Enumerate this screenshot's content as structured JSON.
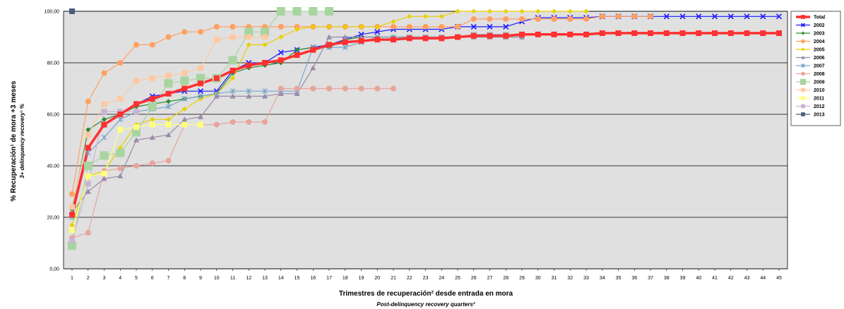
{
  "chart_data": {
    "type": "line",
    "xlabel": "Trimestres de recuperación² desde entrada en mora",
    "xlabel_en": "Post-delinquency recovery quarters²",
    "ylabel": "% Recuperación¹ de mora +3 meses",
    "ylabel_en": "3+ delinquency recovery¹ %",
    "ylim": [
      0,
      100
    ],
    "yticks": [
      "0,00",
      "20,00",
      "40,00",
      "60,00",
      "80,00",
      "100,00"
    ],
    "xlim": [
      1,
      45
    ],
    "grid": "horizontal",
    "legend_position": "right",
    "series": [
      {
        "name": "Total",
        "color": "#ff3030",
        "marker": "square",
        "width": 3.5,
        "values": [
          21,
          47,
          56,
          60,
          64,
          66,
          68,
          70,
          72,
          74,
          77,
          79,
          80,
          81,
          83,
          85,
          87,
          88,
          88.5,
          89,
          89,
          89.5,
          89.5,
          89.5,
          90,
          90.5,
          90.5,
          90.5,
          91,
          91,
          91,
          91,
          91,
          91.5,
          91.5,
          91.5,
          91.5,
          91.5,
          91.5,
          91.5,
          91.5,
          91.5,
          91.5,
          91.5,
          91.5
        ]
      },
      {
        "name": "2002",
        "color": "#1a1aff",
        "marker": "x",
        "width": 1.2,
        "values": [
          21,
          47,
          56,
          60,
          64,
          67,
          68,
          69,
          69,
          69,
          77,
          80,
          80,
          84,
          85,
          86,
          87,
          89,
          91,
          92,
          93,
          93,
          93,
          93,
          94,
          94,
          94,
          94,
          96,
          97.5,
          97.5,
          97.5,
          97.5,
          98,
          98,
          98,
          98,
          98,
          98,
          98,
          98,
          98,
          98,
          98,
          98
        ]
      },
      {
        "name": "2003",
        "color": "#2e8b2e",
        "marker": "diamond",
        "width": 1.2,
        "values": [
          23,
          54,
          58,
          60,
          63,
          64,
          65,
          66,
          67,
          68,
          76,
          78,
          79,
          80,
          85,
          86,
          86,
          89,
          90,
          90,
          90,
          90,
          90,
          90,
          90,
          90,
          90,
          90,
          90
        ]
      },
      {
        "name": "2004",
        "color": "#ffa060",
        "marker": "circle",
        "width": 1.2,
        "values": [
          29,
          65,
          76,
          80,
          87,
          87,
          90,
          92,
          92,
          94,
          94,
          94,
          94,
          94,
          94,
          94,
          94,
          94,
          94,
          94,
          94,
          94,
          94,
          94,
          94,
          97,
          97,
          97,
          97,
          97,
          97,
          97,
          97,
          98,
          98,
          98,
          98
        ]
      },
      {
        "name": "2005",
        "color": "#e8d000",
        "marker": "diamond",
        "width": 1.2,
        "values": [
          17,
          36,
          38,
          47,
          56,
          58,
          58,
          62,
          66,
          68,
          74,
          87,
          87,
          90,
          93,
          94,
          94,
          94,
          94,
          94,
          96,
          98,
          98,
          98,
          100,
          100,
          100,
          100,
          100,
          100,
          100,
          100,
          100
        ]
      },
      {
        "name": "2006",
        "color": "#9a8aaa",
        "marker": "triangle",
        "width": 1.2,
        "values": [
          22,
          30,
          35,
          36,
          50,
          51,
          52,
          58,
          59,
          67,
          67,
          67,
          67,
          68,
          68,
          78,
          90,
          90,
          90,
          90,
          90,
          90,
          90,
          90,
          90,
          90,
          90,
          90,
          90
        ]
      },
      {
        "name": "2007",
        "color": "#7aa6cc",
        "marker": "star",
        "width": 1.2,
        "values": [
          20,
          45,
          51,
          58,
          61,
          62,
          63,
          66,
          67,
          68,
          69,
          69,
          69,
          69,
          69,
          86,
          86,
          86,
          88,
          90,
          90,
          90,
          90,
          90,
          90,
          91,
          91,
          91
        ]
      },
      {
        "name": "2008",
        "color": "#e9a49d",
        "marker": "circle",
        "width": 1.2,
        "values": [
          12,
          14,
          38,
          39,
          40,
          41,
          42,
          56,
          56,
          56,
          57,
          57,
          57,
          70,
          70,
          70,
          70,
          70,
          70,
          70,
          70
        ]
      },
      {
        "name": "2009",
        "color": "#a8d4a0",
        "marker": "bigsquare",
        "width": 1.2,
        "values": [
          9,
          40,
          44,
          45,
          53,
          63,
          72,
          73,
          74,
          74,
          81,
          92,
          92,
          100,
          100,
          100,
          100
        ]
      },
      {
        "name": "2010",
        "color": "#ffc8a0",
        "marker": "square",
        "width": 1.2,
        "values": [
          24,
          52,
          64,
          66,
          73,
          74,
          75,
          76,
          78,
          89,
          90,
          90,
          90
        ]
      },
      {
        "name": "2011",
        "color": "#ffff80",
        "marker": "square",
        "width": 1.2,
        "values": [
          15,
          36,
          37,
          54,
          55,
          56,
          56,
          56,
          56
        ]
      },
      {
        "name": "2012",
        "color": "#c8b4d2",
        "marker": "square",
        "width": 1.2,
        "values": [
          11,
          33,
          61,
          61,
          61
        ]
      },
      {
        "name": "2013",
        "color": "#4a5e7c",
        "marker": "square",
        "width": 1.2,
        "values": [
          100
        ]
      }
    ]
  }
}
